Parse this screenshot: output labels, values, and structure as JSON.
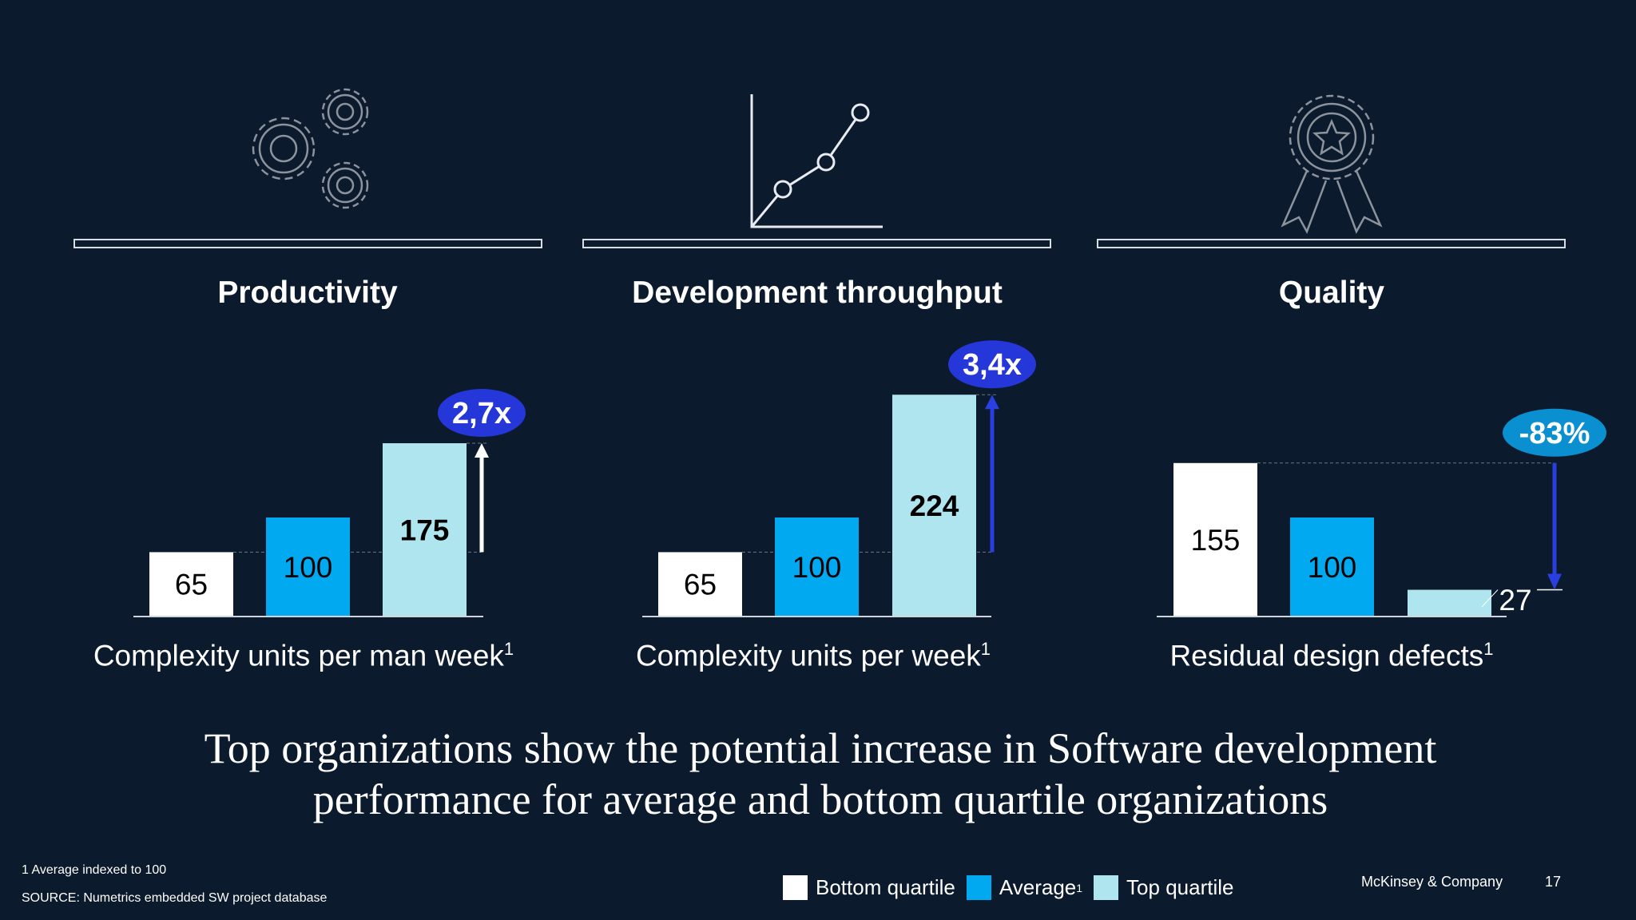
{
  "colors": {
    "background": "#0b1a2c",
    "bottom_quartile": "#ffffff",
    "average": "#00a9f0",
    "top_quartile": "#aee5ee",
    "badge_blue": "#2637d9",
    "badge_cyan": "#0a8fd0",
    "arrow_blue": "#2a3fe0",
    "icon_stroke": "#8c939c"
  },
  "icons": [
    "gears-icon",
    "line-chart-icon",
    "award-ribbon-icon"
  ],
  "chart_data": [
    {
      "type": "bar",
      "title": "Productivity",
      "xlabel": "Complexity units per man week",
      "xlabel_sup": "1",
      "categories": [
        "Bottom quartile",
        "Average",
        "Top quartile"
      ],
      "values": [
        65,
        100,
        175
      ],
      "annotation": "2,7x",
      "annotation_direction": "up"
    },
    {
      "type": "bar",
      "title": "Development throughput",
      "xlabel": "Complexity units per week",
      "xlabel_sup": "1",
      "categories": [
        "Bottom quartile",
        "Average",
        "Top quartile"
      ],
      "values": [
        65,
        100,
        224
      ],
      "annotation": "3,4x",
      "annotation_direction": "up"
    },
    {
      "type": "bar",
      "title": "Quality",
      "xlabel": "Residual design defects",
      "xlabel_sup": "1",
      "categories": [
        "Bottom quartile",
        "Average",
        "Top quartile"
      ],
      "values": [
        155,
        100,
        27
      ],
      "annotation": "-83%",
      "annotation_direction": "down"
    }
  ],
  "headline": {
    "line1": "Top organizations show the potential increase in Software development",
    "line2": "performance for average and bottom quartile organizations"
  },
  "footnote": "1 Average indexed to 100",
  "source": "SOURCE: Numetrics embedded SW project database",
  "legend": [
    {
      "label": "Bottom quartile",
      "sup": ""
    },
    {
      "label": "Average",
      "sup": "1"
    },
    {
      "label": "Top quartile",
      "sup": ""
    }
  ],
  "company": "McKinsey & Company",
  "page_number": "17"
}
